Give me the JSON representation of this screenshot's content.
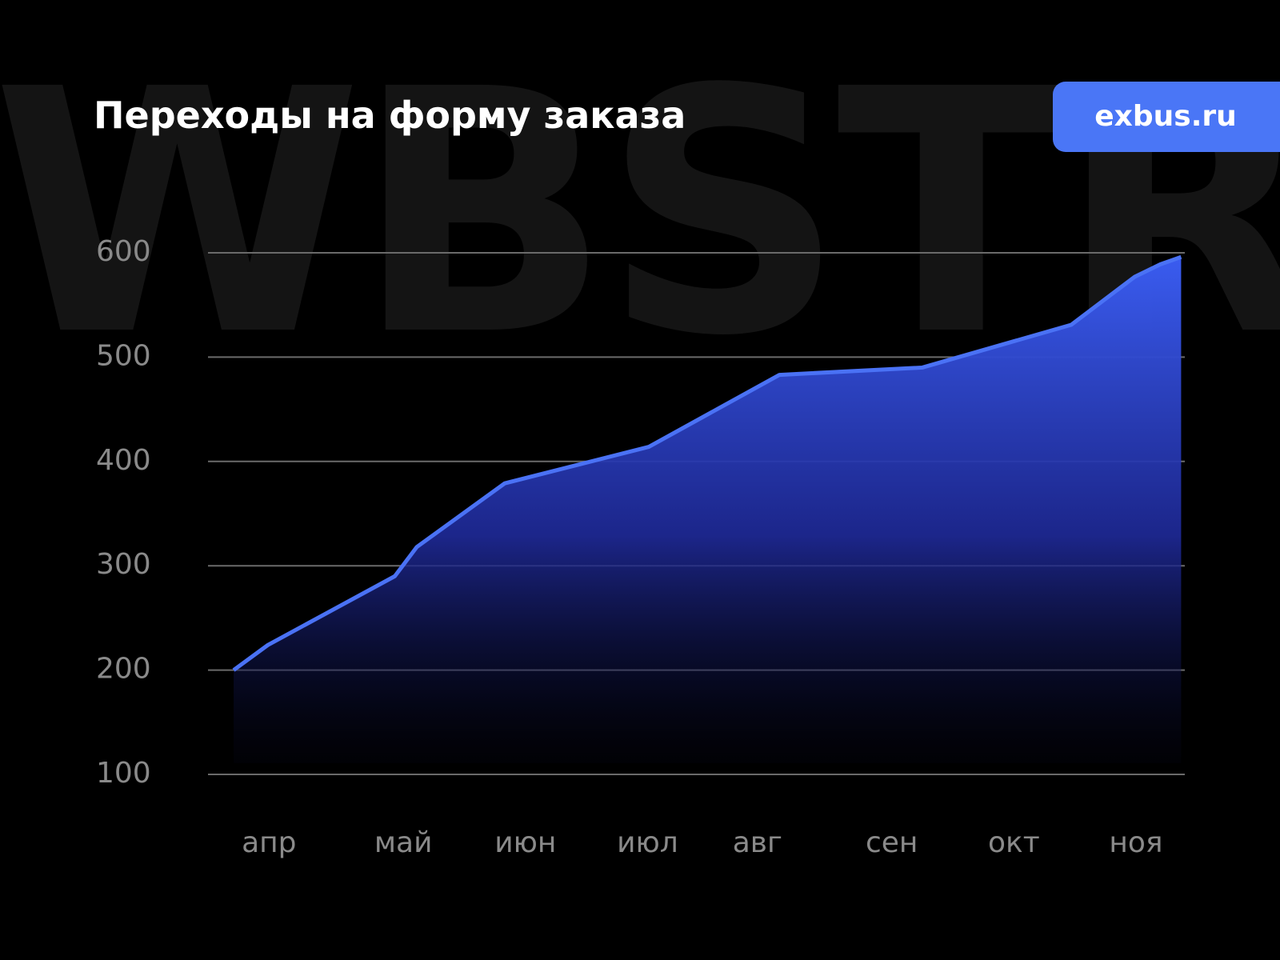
{
  "chart_data": {
    "type": "area",
    "watermark": "WBSTR",
    "title": "Переходы на форму заказа",
    "brand": "exbus.ru",
    "x": [
      0.21,
      0.49,
      1.53,
      1.71,
      2.43,
      3.61,
      4.68,
      5.85,
      7.07,
      7.59,
      7.8,
      7.97
    ],
    "values": [
      200,
      224,
      290,
      318,
      379,
      414,
      483,
      490,
      531,
      577,
      589,
      596
    ],
    "color": "#4a72f5",
    "xlim": [
      0,
      8
    ],
    "xticks": [
      {
        "value": 0.5,
        "label": "апр"
      },
      {
        "value": 1.6,
        "label": "май"
      },
      {
        "value": 2.6,
        "label": "июн"
      },
      {
        "value": 3.6,
        "label": "июл"
      },
      {
        "value": 4.5,
        "label": "авг"
      },
      {
        "value": 5.6,
        "label": "сен"
      },
      {
        "value": 6.6,
        "label": "окт"
      },
      {
        "value": 7.6,
        "label": "ноя"
      }
    ],
    "ylim": [
      100,
      600
    ],
    "yticks": [
      100,
      200,
      300,
      400,
      500,
      600
    ],
    "grid": true
  }
}
